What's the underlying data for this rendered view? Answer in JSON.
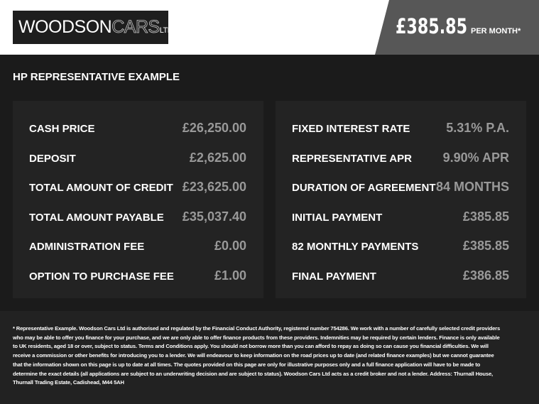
{
  "header": {
    "logo_text": {
      "main": "WOODSON",
      "accent": "CARS",
      "suffix": "LTD"
    },
    "monthly_price": "£385.85",
    "per_month_label": "PER MONTH*"
  },
  "section_title": "HP REPRESENTATIVE EXAMPLE",
  "left_panel": [
    {
      "label": "CASH PRICE",
      "value": "£26,250.00"
    },
    {
      "label": "DEPOSIT",
      "value": "£2,625.00"
    },
    {
      "label": "TOTAL AMOUNT OF CREDIT",
      "value": "£23,625.00"
    },
    {
      "label": "TOTAL AMOUNT PAYABLE",
      "value": "£35,037.40"
    },
    {
      "label": "ADMINISTRATION FEE",
      "value": "£0.00"
    },
    {
      "label": "OPTION TO PURCHASE FEE",
      "value": "£1.00"
    }
  ],
  "right_panel": [
    {
      "label": "FIXED INTEREST RATE",
      "value": "5.31% P.A."
    },
    {
      "label": "REPRESENTATIVE APR",
      "value": "9.90% APR"
    },
    {
      "label": "DURATION OF AGREEMENT",
      "value": "84 MONTHS"
    },
    {
      "label": "INITIAL PAYMENT",
      "value": "£385.85"
    },
    {
      "label": "82 MONTHLY PAYMENTS",
      "value": "£385.85"
    },
    {
      "label": "FINAL PAYMENT",
      "value": "£386.85"
    }
  ],
  "disclaimer": "* Representative Example. Woodson Cars Ltd is authorised and regulated by the Financial Conduct Authority, registered number 754286. We work with a number of carefully selected credit providers who may be able to offer you finance for your purchase, and we are only able to offer finance products from these providers. Indemnities may be required by certain lenders. Finance is only available to UK residents, aged 18 or over, subject to status. Terms and Conditions apply. You should not borrow more than you can afford to repay as doing so can cause you financial difficulties. We will receive a commission or other benefits for introducing you to a lender. We will endeavour to keep information on the road prices up to date (and related finance examples) but we cannot guarantee that the information shown on this page is up to date at all times. The quotes provided on this page are only for illustrative purposes only and a full finance application will have to be made to determine the exact details (all applications are subject to an underwriting decision and are subject to status). Woodson Cars Ltd acts as a credit broker and not a lender. Address: Thurnall House, Thurnall Trading Estate, Cadishead, M44 5AH"
}
